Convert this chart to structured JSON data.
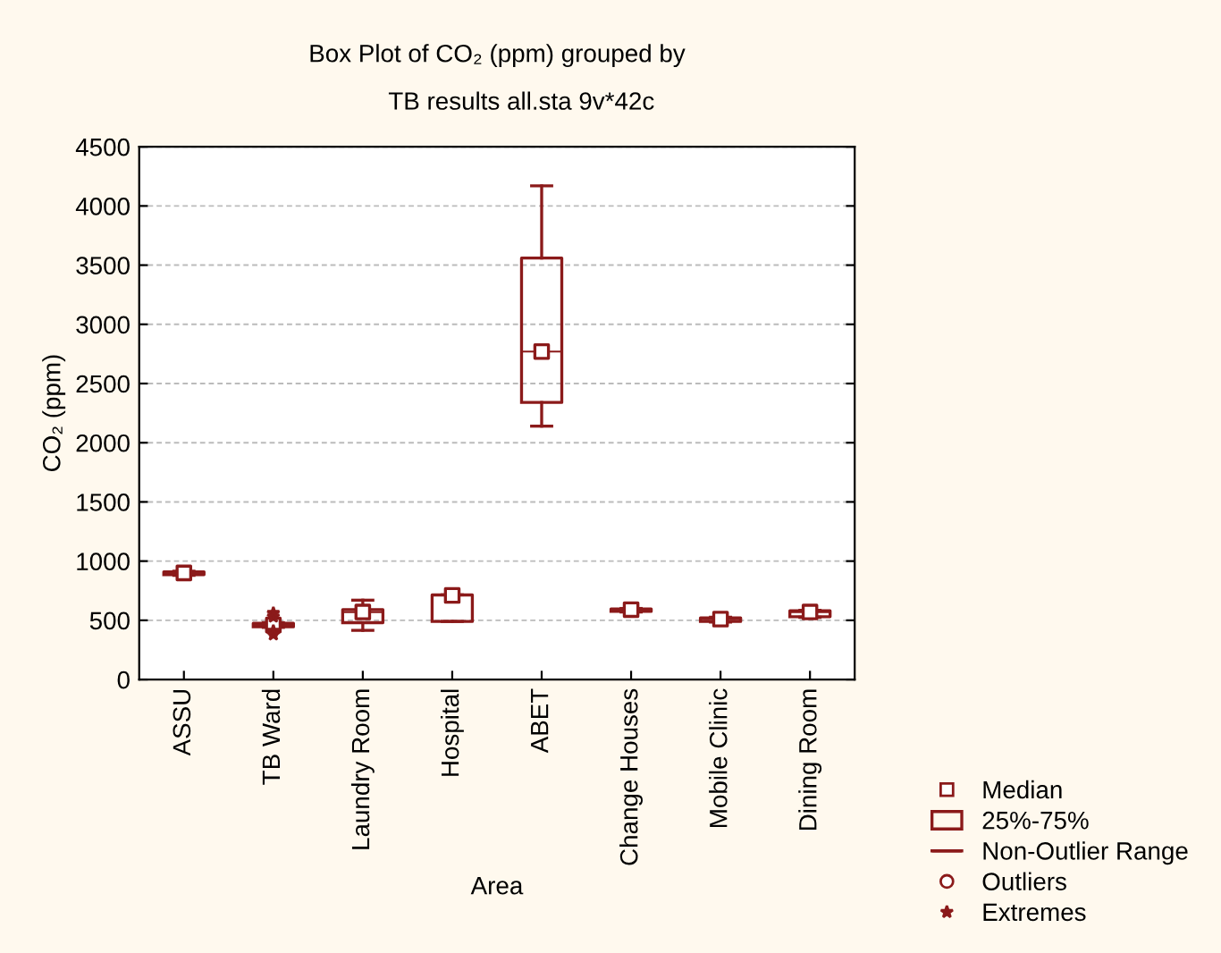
{
  "chart_data": {
    "type": "box",
    "title": "Box Plot of CO₂ (ppm) grouped by",
    "subtitle": "TB results all.sta 9v*42c",
    "xlabel": "Area",
    "ylabel": "CO₂ (ppm)",
    "categories": [
      "ASSU",
      "TB Ward",
      "Laundry Room",
      "Hospital",
      "ABET",
      "Change Houses",
      "Mobile Clinic",
      "Dining Room"
    ],
    "ylim": [
      0,
      4500
    ],
    "yticks": [
      0,
      500,
      1000,
      1500,
      2000,
      2500,
      3000,
      3500,
      4000,
      4500
    ],
    "grid": "y",
    "legend": "bottom right",
    "series": [
      {
        "type": "scatter",
        "name": "Median",
        "color": "#8b1a1a",
        "marker": "square",
        "x": [
          "ASSU",
          "TB Ward",
          "Laundry Room",
          "Hospital",
          "ABET",
          "Change Houses",
          "Mobile Clinic",
          "Dining Room"
        ],
        "values": [
          900,
          460,
          570,
          710,
          2770,
          590,
          510,
          570
        ]
      },
      {
        "name": "25%-75%",
        "color": "#8b1a1a",
        "boxes": [
          {
            "low": 880,
            "q1": 885,
            "median": 900,
            "q3": 910,
            "high": 915
          },
          {
            "low": 440,
            "q1": 445,
            "median": 460,
            "q3": 475,
            "high": 480,
            "outliers": [
              560,
              530,
              410,
              380
            ]
          },
          {
            "low": 415,
            "q1": 480,
            "median": 570,
            "q3": 590,
            "high": 670
          },
          {
            "low": 490,
            "q1": 490,
            "median": 710,
            "q3": 715,
            "high": 715
          },
          {
            "low": 2140,
            "q1": 2340,
            "median": 2770,
            "q3": 3560,
            "high": 4170
          },
          {
            "low": 570,
            "q1": 575,
            "median": 590,
            "q3": 595,
            "high": 600
          },
          {
            "low": 485,
            "q1": 490,
            "median": 510,
            "q3": 520,
            "high": 525
          },
          {
            "low": 525,
            "q1": 530,
            "median": 570,
            "q3": 580,
            "high": 585
          }
        ]
      },
      {
        "type": "line",
        "name": "Non-Outlier Range",
        "color": "#8b1a1a",
        "values": [
          null,
          null,
          null,
          null,
          null,
          null,
          null,
          null
        ]
      },
      {
        "type": "scatter",
        "name": "Outliers",
        "color": "#8b1a1a",
        "marker": "circle",
        "values": [
          null,
          null,
          null,
          null,
          null,
          null,
          null,
          null
        ]
      },
      {
        "type": "scatter",
        "name": "Extremes",
        "color": "#8b1a1a",
        "marker": "star",
        "values": [
          null,
          null,
          null,
          null,
          null,
          null,
          null,
          null
        ]
      }
    ]
  }
}
